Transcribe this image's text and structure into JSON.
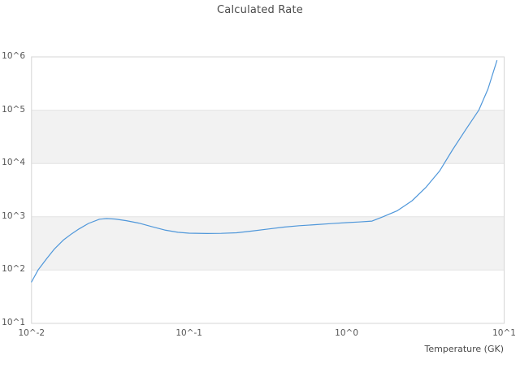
{
  "header": {
    "title": "Calculated Rate"
  },
  "axes": {
    "x_label": "Temperature (GK)",
    "y_label": ""
  },
  "chart_data": {
    "type": "line",
    "title": "Calculated Rate",
    "xlabel": "Temperature (GK)",
    "ylabel": "",
    "x_scale": "log",
    "y_scale": "log",
    "xlim": [
      0.01,
      10
    ],
    "ylim": [
      10,
      1000000
    ],
    "grid": "horizontal-only",
    "legend_position": "none",
    "x_ticks": [
      {
        "value": 0.01,
        "label": "10^-2"
      },
      {
        "value": 0.1,
        "label": "10^-1"
      },
      {
        "value": 1,
        "label": "10^0"
      },
      {
        "value": 10,
        "label": "10^1"
      }
    ],
    "y_ticks": [
      {
        "value": 10,
        "label": "10^1"
      },
      {
        "value": 100,
        "label": "10^2"
      },
      {
        "value": 1000,
        "label": "10^3"
      },
      {
        "value": 10000,
        "label": "10^4"
      },
      {
        "value": 100000,
        "label": "10^5"
      },
      {
        "value": 1000000,
        "label": "10^6"
      }
    ],
    "shaded_bands": [
      {
        "from": 100,
        "to": 1000
      },
      {
        "from": 10000,
        "to": 100000
      }
    ],
    "colors": {
      "series": "#4f97da",
      "band": "#f2f2f2",
      "gridline": "#e4e4e4",
      "border": "#d6d6d6",
      "title_text": "#4a4a4a",
      "tick_text": "#565656",
      "background": "#ffffff"
    },
    "series": [
      {
        "name": "Calculated Rate",
        "x": [
          0.01,
          0.011,
          0.0125,
          0.014,
          0.016,
          0.018,
          0.02,
          0.023,
          0.027,
          0.03,
          0.034,
          0.04,
          0.048,
          0.058,
          0.07,
          0.085,
          0.1,
          0.13,
          0.16,
          0.2,
          0.25,
          0.32,
          0.4,
          0.5,
          0.65,
          0.8,
          1.0,
          1.2,
          1.45,
          1.7,
          2.1,
          2.6,
          3.2,
          3.9,
          4.7,
          5.7,
          6.9,
          7.9,
          9.0
        ],
        "y": [
          60,
          100,
          165,
          250,
          370,
          480,
          590,
          750,
          900,
          925,
          905,
          845,
          760,
          655,
          565,
          512,
          492,
          485,
          488,
          500,
          540,
          590,
          640,
          680,
          715,
          745,
          778,
          800,
          830,
          1000,
          1300,
          2000,
          3600,
          7300,
          18000,
          43000,
          100000,
          250000,
          850000
        ]
      }
    ]
  }
}
